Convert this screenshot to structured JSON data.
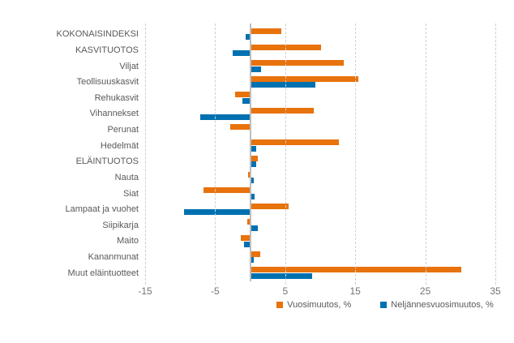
{
  "chart_data": {
    "type": "bar",
    "orientation": "horizontal",
    "title": "",
    "xlabel": "",
    "ylabel": "",
    "categories": [
      "KOKONAISINDEKSI",
      "KASVITUOTOS",
      "Viljat",
      "Teollisuuskasvit",
      "Rehukasvit",
      "Vihannekset",
      "Perunat",
      "Hedelmät",
      "ELÄINTUOTOS",
      "Nauta",
      "Siat",
      "Lampaat ja vuohet",
      "Siipikarja",
      "Maito",
      "Kananmunat",
      "Muut eläintuotteet"
    ],
    "series": [
      {
        "name": "Vuosimuutos, %",
        "color": "#e8720c",
        "values": [
          4.4,
          10.1,
          13.4,
          15.4,
          -2.2,
          9.1,
          -2.8,
          12.7,
          1.1,
          -0.3,
          -6.7,
          5.5,
          -0.4,
          -1.4,
          1.4,
          30.1
        ]
      },
      {
        "name": "Neljännesvuosimuutos, %",
        "color": "#0071b0",
        "values": [
          -0.6,
          -2.5,
          1.6,
          9.3,
          -1.1,
          -7.1,
          0.0,
          0.8,
          0.9,
          0.5,
          0.6,
          -9.5,
          1.1,
          -0.9,
          0.5,
          8.8
        ]
      }
    ],
    "xlim": [
      -15,
      35
    ],
    "xticks": [
      -15,
      -5,
      5,
      15,
      25,
      35
    ],
    "grid": true,
    "legend_position": "bottom",
    "bar_colors": {
      "annual": "#e8720c",
      "quarterly": "#0071b0"
    },
    "axis_color": "#bdbdbd",
    "gridline_color": "#cfcfcf",
    "label_color": "#595959"
  },
  "legend": {
    "items": [
      {
        "label": "Vuosimuutos, %",
        "color": "#e8720c"
      },
      {
        "label": "Neljännesvuosimuutos, %",
        "color": "#0071b0"
      }
    ]
  }
}
